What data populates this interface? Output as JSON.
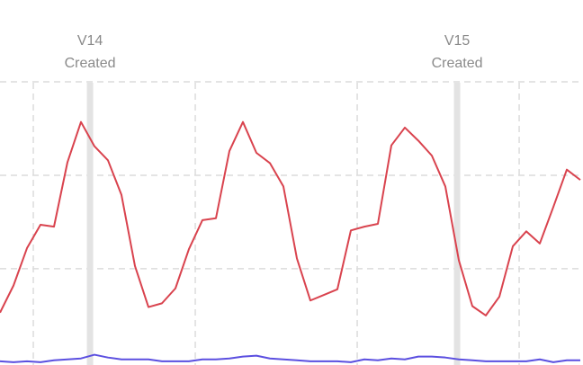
{
  "chart_data": {
    "type": "line",
    "x": [
      0,
      1,
      2,
      3,
      4,
      5,
      6,
      7,
      8,
      9,
      10,
      11,
      12,
      13,
      14,
      15,
      16,
      17,
      18,
      19,
      20,
      21,
      22,
      23,
      24,
      25,
      26,
      27,
      28,
      29,
      30,
      31,
      32,
      33,
      34,
      35,
      36,
      37,
      38,
      39,
      40,
      41,
      42,
      43
    ],
    "series": [
      {
        "color": "#d9434e",
        "values": [
          0.53,
          0.82,
          1.22,
          1.47,
          1.45,
          2.14,
          2.57,
          2.31,
          2.16,
          1.79,
          1.03,
          0.59,
          0.63,
          0.79,
          1.21,
          1.52,
          1.54,
          2.26,
          2.57,
          2.24,
          2.13,
          1.88,
          1.11,
          0.66,
          0.72,
          0.78,
          1.41,
          1.45,
          1.48,
          2.32,
          2.51,
          2.37,
          2.21,
          1.88,
          1.09,
          0.6,
          0.5,
          0.7,
          1.24,
          1.4,
          1.27,
          1.66,
          2.06,
          1.95
        ]
      },
      {
        "color": "#5b4fe0",
        "values": [
          0.01,
          0,
          0.01,
          0,
          0.02,
          0.03,
          0.04,
          0.08,
          0.05,
          0.03,
          0.03,
          0.03,
          0.01,
          0.01,
          0.01,
          0.03,
          0.03,
          0.04,
          0.06,
          0.07,
          0.04,
          0.03,
          0.02,
          0.01,
          0.01,
          0.01,
          0,
          0.03,
          0.02,
          0.04,
          0.03,
          0.06,
          0.06,
          0.05,
          0.03,
          0.02,
          0.01,
          0.01,
          0.01,
          0.01,
          0.03,
          0,
          0.02,
          0.02
        ]
      }
    ],
    "xlim": [
      0,
      43.2
    ],
    "ylim": [
      -0.03,
      3.875
    ],
    "xticks": [
      2.47,
      14.47,
      26.47,
      38.47
    ],
    "yticks": [
      1,
      2,
      3
    ],
    "grid": true,
    "annotations": [
      {
        "x": 6.67,
        "lines": [
          "V14",
          "Created"
        ]
      },
      {
        "x": 33.87,
        "lines": [
          "V15",
          "Created"
        ]
      }
    ]
  }
}
